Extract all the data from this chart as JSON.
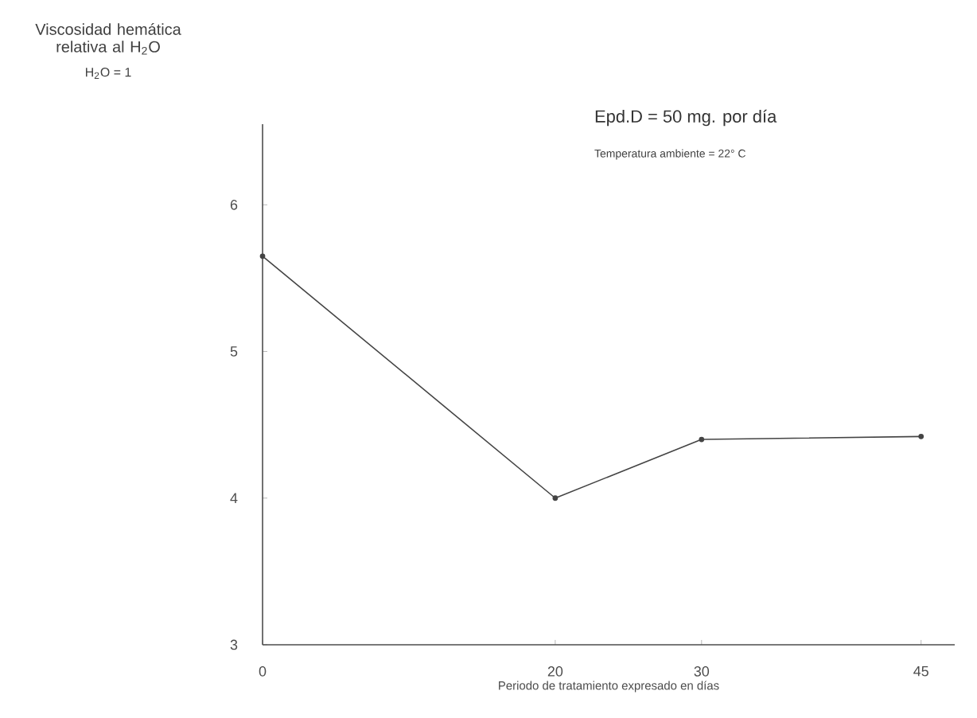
{
  "chart_data": {
    "type": "line",
    "xlabel": "Periodo de tratamiento expresado en días",
    "annotations": [
      "Viscosidad hemática relativa al H$_{2}$O",
      "H$_{2}$O = 1",
      "Epd.D = 50 mg. por día",
      "Temperatura ambiente = 22° C"
    ],
    "x": [
      0,
      20,
      30,
      45
    ],
    "series": [
      {
        "color": "#444444",
        "values": [
          5.65,
          4.0,
          4.4,
          4.42
        ]
      }
    ],
    "xlim": [
      0,
      47.3
    ],
    "ylim": [
      3,
      6.55
    ],
    "xticks": [
      0,
      20,
      30,
      45
    ],
    "yticks": [
      3,
      4,
      5,
      6
    ],
    "grid": false,
    "marker": "circle",
    "line_style": "solid"
  }
}
